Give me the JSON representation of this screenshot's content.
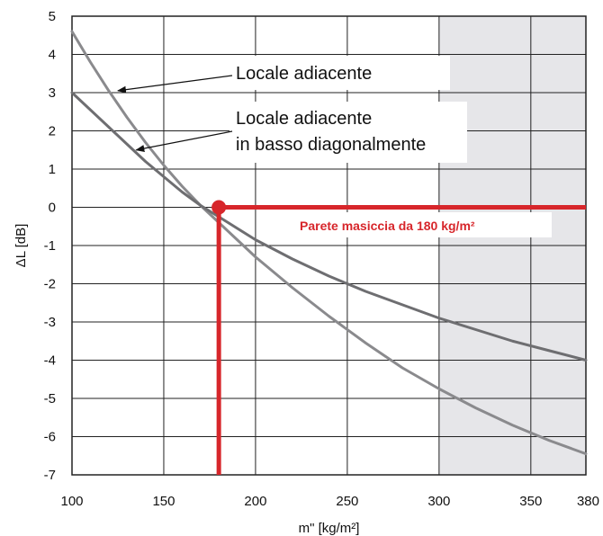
{
  "chart_data": {
    "type": "line",
    "xlabel": "m\" [kg/m²]",
    "ylabel": "ΔL [dB]",
    "xlim": [
      100,
      380
    ],
    "ylim": [
      -7,
      5
    ],
    "x_ticks": [
      100,
      150,
      200,
      250,
      300,
      350,
      380
    ],
    "y_ticks": [
      5,
      4,
      3,
      2,
      1,
      0,
      -1,
      -2,
      -3,
      -4,
      -5,
      -6,
      -7
    ],
    "grid": true,
    "shaded_region": {
      "x_from": 300,
      "x_to": 380,
      "color": "#e6e6e9"
    },
    "series": [
      {
        "name": "Locale adiacente",
        "color": "#8a8a8d",
        "x": [
          100,
          110,
          120,
          130,
          140,
          150,
          160,
          170,
          180,
          190,
          200,
          220,
          240,
          260,
          280,
          300,
          320,
          340,
          360,
          380
        ],
        "y": [
          4.6,
          3.8,
          3.05,
          2.35,
          1.7,
          1.1,
          0.55,
          0.05,
          -0.4,
          -0.85,
          -1.3,
          -2.1,
          -2.85,
          -3.55,
          -4.2,
          -4.75,
          -5.25,
          -5.7,
          -6.1,
          -6.45
        ]
      },
      {
        "name": "Locale adiacente\nin basso diagonalmente",
        "color": "#6e6e71",
        "x": [
          100,
          110,
          120,
          130,
          140,
          150,
          160,
          170,
          180,
          190,
          200,
          220,
          240,
          260,
          280,
          300,
          320,
          340,
          360,
          380
        ],
        "y": [
          3.0,
          2.55,
          2.1,
          1.65,
          1.2,
          0.8,
          0.4,
          0.05,
          -0.25,
          -0.55,
          -0.85,
          -1.35,
          -1.8,
          -2.2,
          -2.55,
          -2.9,
          -3.2,
          -3.5,
          -3.75,
          -4.0
        ]
      }
    ],
    "annotations": [
      {
        "id": "locale-adiacente",
        "lines": [
          "Locale adiacente"
        ],
        "points_to": {
          "x": 125,
          "y": 3.05
        }
      },
      {
        "id": "locale-diagonale",
        "lines": [
          "Locale adiacente",
          "in basso diagonalmente"
        ],
        "points_to": {
          "x": 135,
          "y": 1.5
        }
      }
    ],
    "marker": {
      "x": 180,
      "y": 0,
      "color": "#d7262b",
      "label": "Parete masiccia da 180 kg/m²"
    }
  }
}
